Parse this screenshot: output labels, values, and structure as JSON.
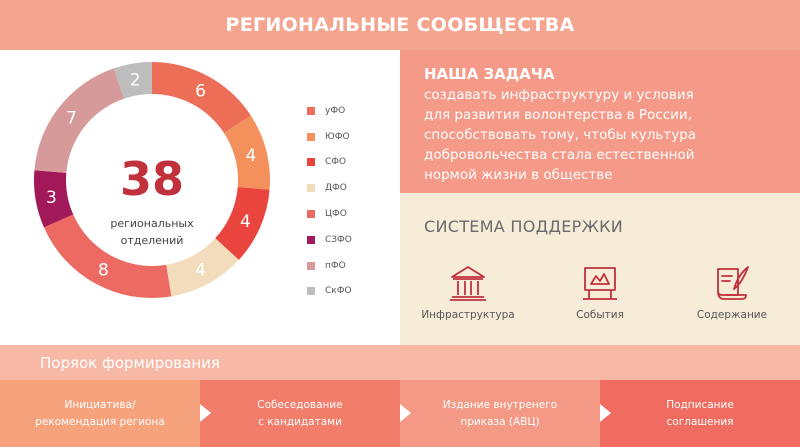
{
  "header": {
    "title": "РЕГИОНАЛЬНЫЕ СООБЩЕСТВА"
  },
  "summary": {
    "total": "38",
    "total_label_line1": "региональных",
    "total_label_line2": "отделений"
  },
  "chart_data": {
    "type": "pie",
    "categories": [
      "уФО",
      "ЮФО",
      "СФО",
      "ДФО",
      "ЦФО",
      "СЗФО",
      "пФО",
      "СкФО"
    ],
    "values": [
      6,
      4,
      4,
      4,
      8,
      3,
      7,
      2
    ],
    "colors": [
      "#ec6e57",
      "#f4905c",
      "#e9453e",
      "#f3dcbc",
      "#ec6a62",
      "#a2195a",
      "#d79a9a",
      "#bdbdbd"
    ]
  },
  "mission": {
    "title": "НАША ЗАДАЧА",
    "lines": [
      "создавать инфраструктуру и условия",
      "для развития волонтерства в России,",
      "способствовать тому, чтобы культура",
      "добровольчества стала естественной",
      "нормой жизни в обществе"
    ]
  },
  "support": {
    "title": "СИСТЕМА ПОДДЕРЖКИ",
    "items": [
      {
        "label": "Инфраструктура",
        "icon": "building-columns-icon"
      },
      {
        "label": "События",
        "icon": "event-stage-icon"
      },
      {
        "label": "Содержание",
        "icon": "scroll-quill-icon"
      }
    ]
  },
  "process": {
    "title": "Поряок формирования",
    "steps": [
      {
        "line1": "Инициатива/",
        "line2": "рекомендация региона",
        "color": "#f6a27c"
      },
      {
        "line1": "Собеседование",
        "line2": "с кандидатами",
        "color": "#f37d6b"
      },
      {
        "line1": "Издание внутренего",
        "line2": "приказа (АВЦ)",
        "color": "#f49985"
      },
      {
        "line1": "Подписание",
        "line2": "соглашения",
        "color": "#f06c60"
      }
    ]
  }
}
